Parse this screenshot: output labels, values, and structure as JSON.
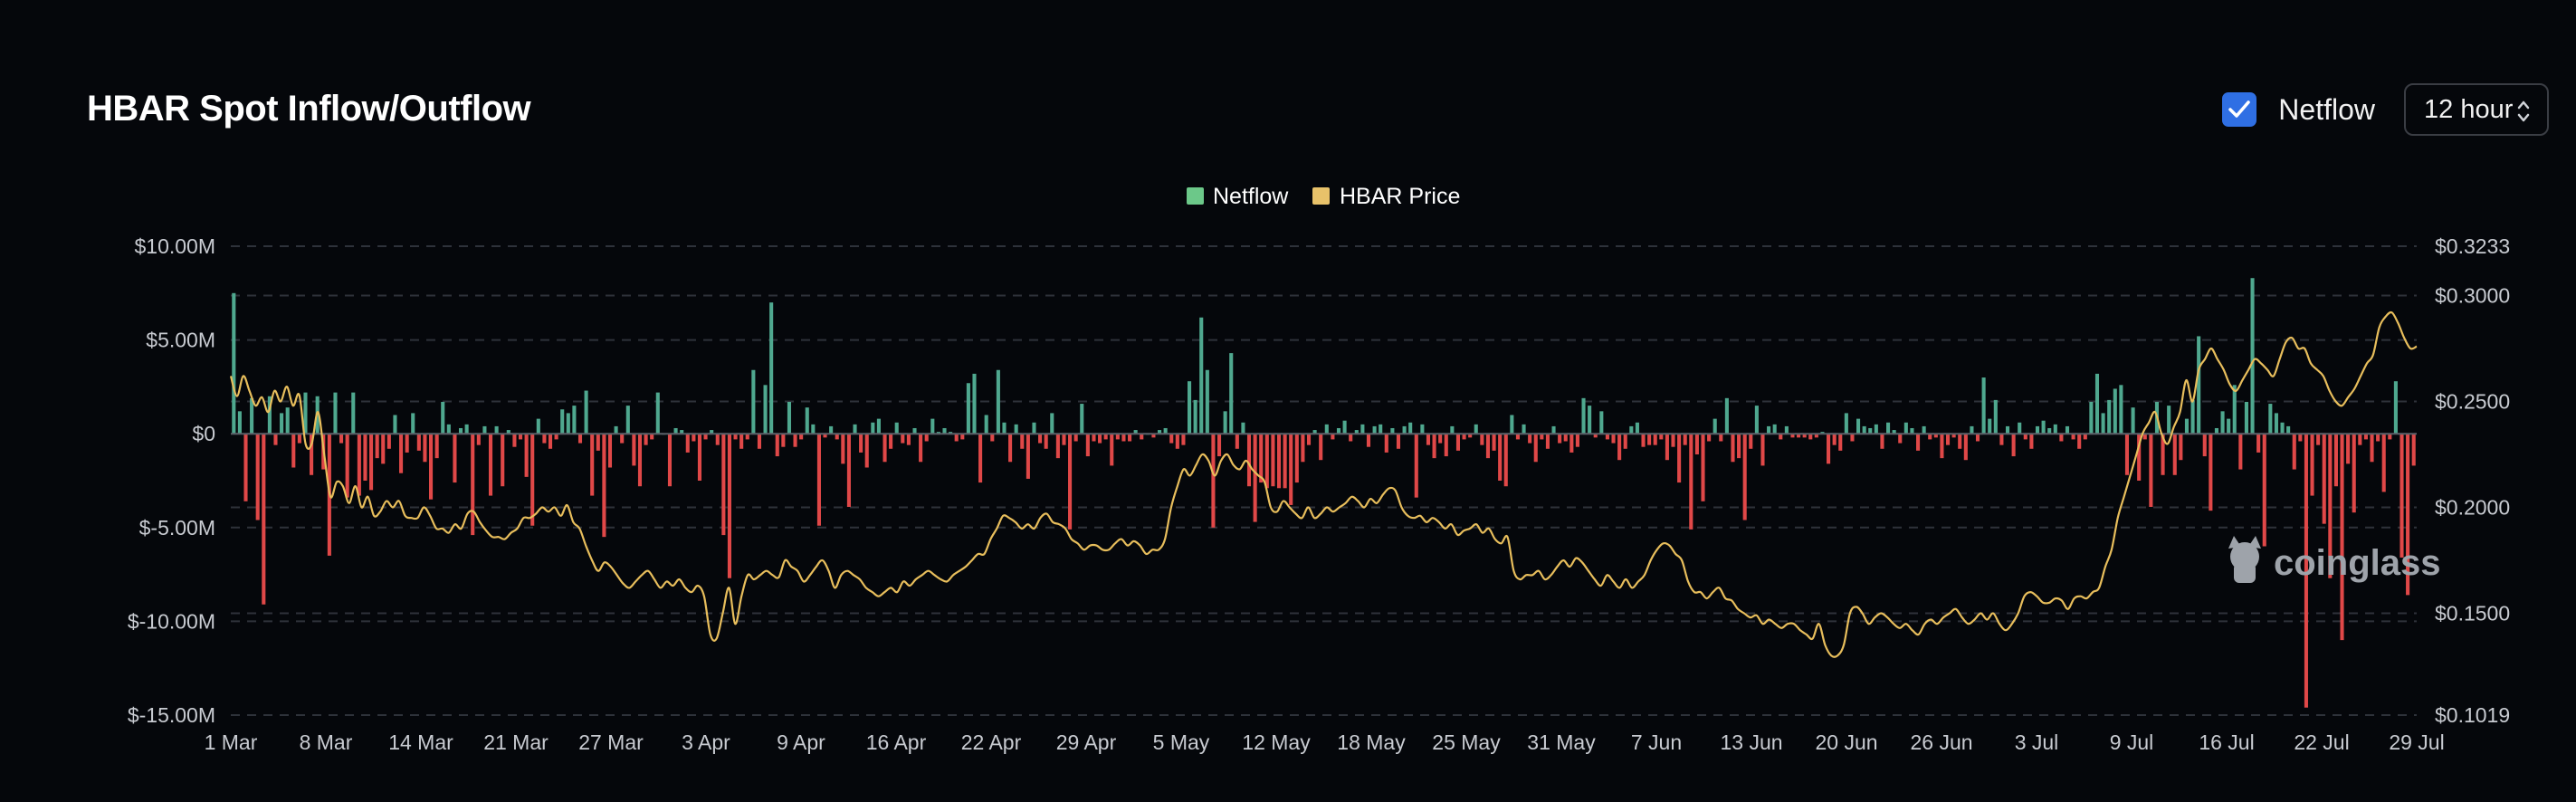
{
  "header": {
    "title": "HBAR Spot Inflow/Outflow",
    "netflow_toggle_label": "Netflow",
    "netflow_checked": true,
    "interval_value": "12 hour"
  },
  "watermark": "coinglass",
  "colors": {
    "inflow": "#4fa88f",
    "outflow": "#e04848",
    "price": "#e8be5c",
    "legend_netflow": "#6cc889",
    "legend_price": "#e8c26a",
    "grid": "#2e323a"
  },
  "chart_data": {
    "type": "bar",
    "title": "",
    "legend": [
      "Netflow",
      "HBAR Price"
    ],
    "legend_position": "top-center",
    "grid": true,
    "x_ticks": [
      "1 Mar",
      "8 Mar",
      "14 Mar",
      "21 Mar",
      "27 Mar",
      "3 Apr",
      "9 Apr",
      "16 Apr",
      "22 Apr",
      "29 Apr",
      "5 May",
      "12 May",
      "18 May",
      "25 May",
      "31 May",
      "7 Jun",
      "13 Jun",
      "20 Jun",
      "26 Jun",
      "3 Jul",
      "9 Jul",
      "16 Jul",
      "22 Jul",
      "29 Jul"
    ],
    "y_left_ticks": [
      "$10.00M",
      "$5.00M",
      "$0",
      "$-5.00M",
      "$-10.00M",
      "$-15.00M"
    ],
    "y_left_range": [
      -15,
      10
    ],
    "y_left_unit": "$M",
    "y_right_ticks": [
      "$0.3233",
      "$0.3000",
      "$0.2500",
      "$0.2000",
      "$0.1500",
      "$0.1019"
    ],
    "y_right_range": [
      0.1019,
      0.3233
    ],
    "series": [
      {
        "name": "Netflow",
        "kind": "bar",
        "unit": "$M",
        "bars_per_day": 2,
        "values": [
          7.5,
          1.2,
          -3.6,
          1.9,
          -4.6,
          -9.1,
          2,
          -0.6,
          1.1,
          1.4,
          -1.8,
          -0.5,
          2.2,
          -2.2,
          2,
          -1.9,
          -6.5,
          2.2,
          -0.5,
          -3.4,
          2.2,
          -3.3,
          -2.5,
          -3,
          -1.3,
          -1.6,
          -0.8,
          1,
          -2.1,
          -1,
          1.1,
          -0.9,
          -1.5,
          -3.5,
          -1.3,
          1.7,
          0.5,
          -2.6,
          0.3,
          0.5,
          -5.4,
          -0.6,
          0.4,
          -3.3,
          0.4,
          -2.8,
          0.2,
          -0.7,
          -0.3,
          -2.3,
          -4.9,
          0.8,
          -0.5,
          -0.8,
          -0.3,
          1.3,
          1.1,
          1.5,
          -0.5,
          2.3,
          -3.3,
          -0.9,
          -5.5,
          -1.8,
          0.4,
          -0.5,
          1.5,
          -1.7,
          -2.8,
          -0.6,
          -0.3,
          2.2,
          0,
          -2.8,
          0.3,
          0.2,
          -1,
          -0.4,
          -2.5,
          -0.3,
          0.2,
          -0.6,
          -5.4,
          -7.7,
          -0.3,
          -0.8,
          -0.3,
          3.4,
          -0.8,
          2.6,
          7,
          -1.2,
          -0.7,
          1.7,
          -0.7,
          -0.3,
          1.4,
          0.5,
          -4.9,
          -0.2,
          0.4,
          -0.3,
          -1.6,
          -3.9,
          0.5,
          -1,
          -1.8,
          0.6,
          0.8,
          -1.5,
          -0.8,
          0.6,
          -0.5,
          -0.6,
          0.3,
          -1.5,
          -0.4,
          0.8,
          0.1,
          0.3,
          0.1,
          -0.4,
          -0.3,
          2.7,
          3.2,
          -2.6,
          1,
          -0.4,
          3.4,
          0.6,
          -1.5,
          0.5,
          -0.8,
          -2.4,
          0.6,
          -0.5,
          -0.8,
          1.1,
          -1.3,
          -0.6,
          -5.1,
          -0.4,
          1.6,
          -1.2,
          -0.4,
          -0.5,
          -0.3,
          -1.7,
          -0.3,
          -0.4,
          -0.4,
          0.2,
          -0.3,
          0,
          -0.2,
          0.2,
          0.3,
          -0.5,
          -0.8,
          -0.6,
          2.8,
          1.8,
          6.2,
          3.4,
          -5,
          -1.2,
          1.2,
          4.3,
          -0.8,
          0.6,
          -2.8,
          -4.7,
          -2.6,
          -2.9,
          -2.8,
          -2.9,
          -2.9,
          -3.8,
          -2.6,
          -1.5,
          -0.6,
          0.2,
          -1.4,
          0.5,
          -0.3,
          0.3,
          0.7,
          -0.4,
          0.2,
          0.5,
          -0.7,
          0.4,
          0.5,
          -1,
          0.3,
          -0.8,
          0.4,
          0.6,
          -3.4,
          0.5,
          -0.6,
          -1.3,
          -0.5,
          -1.2,
          0.4,
          -0.9,
          -0.3,
          -0.2,
          0.5,
          -0.6,
          -1.3,
          -0.9,
          -2.5,
          -2.8,
          1,
          -0.3,
          0.5,
          -0.5,
          -1.5,
          -0.3,
          -0.8,
          0.4,
          -0.5,
          -0.4,
          -1,
          -0.7,
          1.9,
          1.5,
          -0.2,
          1.2,
          -0.3,
          -0.5,
          -1.4,
          -0.8,
          0.4,
          0.6,
          -0.7,
          -0.6,
          -0.6,
          -0.3,
          -1.4,
          -0.7,
          -2.6,
          -0.6,
          -5.1,
          -1.1,
          -3.6,
          -0.4,
          0.8,
          -0.4,
          1.9,
          -1.5,
          -1.3,
          -4.6,
          -0.8,
          1.5,
          -1.7,
          0.4,
          0.5,
          -0.3,
          0.4,
          -0.2,
          -0.2,
          -0.2,
          -0.3,
          -0.2,
          0.1,
          -1.6,
          -0.6,
          -0.9,
          1.1,
          -0.4,
          0.8,
          0.4,
          0.3,
          0.5,
          -0.8,
          0.6,
          0.2,
          -0.5,
          0.6,
          0.3,
          -0.9,
          0.4,
          -0.3,
          -0.2,
          -1.3,
          -0.6,
          -0.2,
          -0.8,
          -1.4,
          0.4,
          -0.4,
          3,
          0.8,
          1.8,
          -0.6,
          0.4,
          -1.2,
          0.6,
          -0.3,
          -0.8,
          0.4,
          0.7,
          0.3,
          0.5,
          -0.4,
          0.4,
          -0.3,
          -0.8,
          -0.3,
          1.7,
          3.2,
          1.1,
          1.8,
          2.4,
          2.6,
          -2.2,
          1.4,
          -2.5,
          -0.3,
          -3.9,
          1.7,
          -2.2,
          1.5,
          -2.2,
          -1.4,
          0.8,
          1.8,
          5.2,
          -1.2,
          -4.1,
          0.3,
          1.2,
          0.8,
          2.6,
          -1.9,
          1.7,
          8.3,
          -1,
          -6,
          1.6,
          1.1,
          0.6,
          0.4,
          -1.9,
          -0.4,
          -14.6,
          -3.3,
          -0.6,
          -4.8,
          -7.7,
          -2.8,
          -11,
          -1.6,
          -4.2,
          -0.6,
          -0.3,
          -1.5,
          -0.4,
          -3.1,
          -0.3,
          2.8,
          -6.6,
          -8.6,
          -1.7
        ]
      },
      {
        "name": "HBAR Price",
        "kind": "line",
        "unit": "$",
        "points_per_day": 2,
        "values": [
          0.262,
          0.2525,
          0.262,
          0.255,
          0.248,
          0.252,
          0.245,
          0.255,
          0.25,
          0.257,
          0.248,
          0.253,
          0.23,
          0.23,
          0.245,
          0.225,
          0.205,
          0.212,
          0.21,
          0.202,
          0.21,
          0.2,
          0.205,
          0.196,
          0.198,
          0.203,
          0.2,
          0.203,
          0.196,
          0.195,
          0.195,
          0.2,
          0.196,
          0.19,
          0.19,
          0.188,
          0.192,
          0.19,
          0.197,
          0.198,
          0.193,
          0.189,
          0.186,
          0.186,
          0.185,
          0.188,
          0.19,
          0.195,
          0.195,
          0.197,
          0.2,
          0.198,
          0.2,
          0.196,
          0.201,
          0.193,
          0.19,
          0.182,
          0.175,
          0.17,
          0.174,
          0.172,
          0.168,
          0.164,
          0.162,
          0.165,
          0.168,
          0.17,
          0.166,
          0.162,
          0.165,
          0.163,
          0.166,
          0.162,
          0.16,
          0.163,
          0.158,
          0.14,
          0.138,
          0.15,
          0.162,
          0.145,
          0.158,
          0.168,
          0.166,
          0.168,
          0.17,
          0.168,
          0.167,
          0.175,
          0.172,
          0.17,
          0.165,
          0.168,
          0.172,
          0.175,
          0.17,
          0.162,
          0.168,
          0.17,
          0.168,
          0.166,
          0.162,
          0.16,
          0.158,
          0.16,
          0.162,
          0.16,
          0.165,
          0.163,
          0.166,
          0.168,
          0.17,
          0.168,
          0.166,
          0.165,
          0.168,
          0.17,
          0.172,
          0.175,
          0.178,
          0.178,
          0.185,
          0.19,
          0.196,
          0.195,
          0.193,
          0.19,
          0.192,
          0.19,
          0.195,
          0.197,
          0.193,
          0.192,
          0.19,
          0.185,
          0.183,
          0.18,
          0.182,
          0.182,
          0.18,
          0.18,
          0.183,
          0.185,
          0.182,
          0.184,
          0.182,
          0.178,
          0.18,
          0.18,
          0.185,
          0.2,
          0.21,
          0.218,
          0.215,
          0.22,
          0.225,
          0.222,
          0.215,
          0.222,
          0.225,
          0.22,
          0.218,
          0.222,
          0.218,
          0.215,
          0.212,
          0.2,
          0.198,
          0.203,
          0.2,
          0.197,
          0.195,
          0.2,
          0.195,
          0.197,
          0.2,
          0.198,
          0.2,
          0.202,
          0.205,
          0.203,
          0.2,
          0.204,
          0.202,
          0.206,
          0.209,
          0.208,
          0.2,
          0.196,
          0.195,
          0.196,
          0.193,
          0.195,
          0.193,
          0.19,
          0.192,
          0.187,
          0.189,
          0.19,
          0.192,
          0.188,
          0.19,
          0.185,
          0.183,
          0.186,
          0.17,
          0.166,
          0.168,
          0.168,
          0.17,
          0.166,
          0.168,
          0.172,
          0.175,
          0.172,
          0.176,
          0.174,
          0.17,
          0.166,
          0.163,
          0.168,
          0.165,
          0.162,
          0.166,
          0.162,
          0.165,
          0.168,
          0.175,
          0.18,
          0.183,
          0.182,
          0.178,
          0.175,
          0.165,
          0.16,
          0.16,
          0.157,
          0.16,
          0.162,
          0.157,
          0.156,
          0.152,
          0.15,
          0.148,
          0.149,
          0.145,
          0.147,
          0.145,
          0.143,
          0.145,
          0.145,
          0.142,
          0.14,
          0.138,
          0.145,
          0.135,
          0.13,
          0.13,
          0.135,
          0.15,
          0.153,
          0.15,
          0.145,
          0.148,
          0.15,
          0.148,
          0.145,
          0.143,
          0.145,
          0.142,
          0.14,
          0.145,
          0.147,
          0.145,
          0.148,
          0.15,
          0.152,
          0.148,
          0.145,
          0.147,
          0.15,
          0.147,
          0.15,
          0.145,
          0.142,
          0.145,
          0.15,
          0.158,
          0.16,
          0.158,
          0.155,
          0.155,
          0.157,
          0.156,
          0.152,
          0.157,
          0.158,
          0.157,
          0.16,
          0.162,
          0.172,
          0.18,
          0.195,
          0.205,
          0.215,
          0.225,
          0.235,
          0.24,
          0.245,
          0.235,
          0.23,
          0.238,
          0.245,
          0.26,
          0.25,
          0.265,
          0.27,
          0.275,
          0.27,
          0.265,
          0.258,
          0.255,
          0.26,
          0.265,
          0.27,
          0.268,
          0.265,
          0.262,
          0.27,
          0.278,
          0.28,
          0.275,
          0.275,
          0.268,
          0.265,
          0.262,
          0.255,
          0.25,
          0.248,
          0.252,
          0.256,
          0.262,
          0.268,
          0.272,
          0.285,
          0.29,
          0.292,
          0.287,
          0.28,
          0.275,
          0.276
        ]
      }
    ]
  }
}
